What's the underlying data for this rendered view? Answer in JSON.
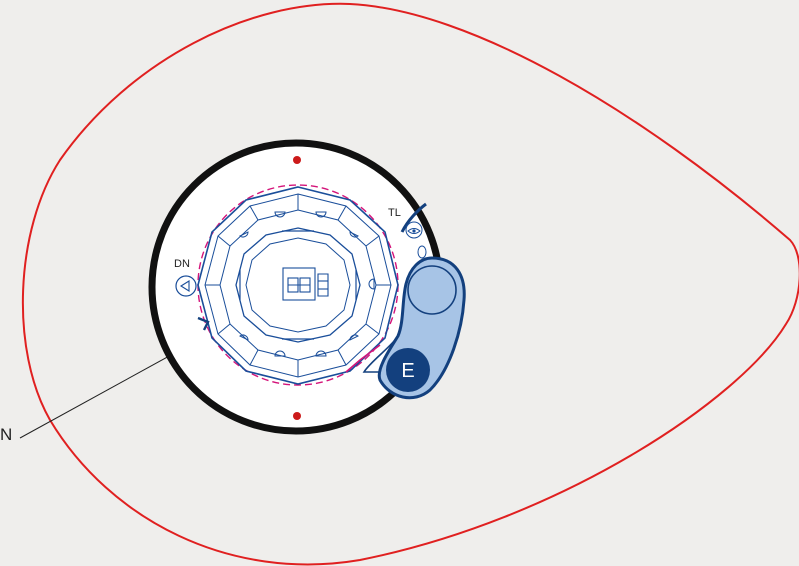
{
  "labels": {
    "tl": "TL",
    "dn": "DN",
    "e": "E",
    "callout": "N"
  },
  "colors": {
    "background": "#efeeec",
    "outline_red": "#e02020",
    "ring_black": "#111111",
    "plan_blue": "#1a4e9a",
    "accent_magenta": "#d4147a",
    "badge_dark": "#13407e",
    "badge_light": "#a7c4e6",
    "leader": "#222222",
    "dot_red": "#cc1a1a"
  },
  "icons": {
    "tl": "eye-icon",
    "dn": "triangle-left-icon",
    "center": "stair-block-icon"
  }
}
